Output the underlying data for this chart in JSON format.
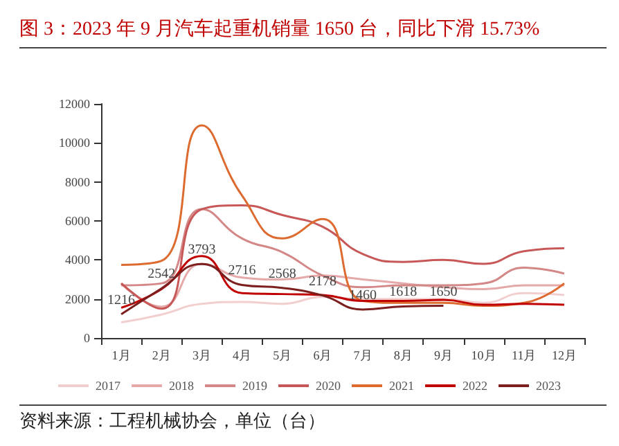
{
  "chart_data": {
    "type": "line",
    "title": "图 3：2023 年 9 月汽车起重机销量 1650 台，同比下滑 15.73%",
    "categories": [
      "1月",
      "2月",
      "3月",
      "4月",
      "5月",
      "6月",
      "7月",
      "8月",
      "9月",
      "10月",
      "11月",
      "12月"
    ],
    "series": [
      {
        "name": "2017",
        "color": "#f2cfcf",
        "values": [
          800,
          1200,
          1750,
          1850,
          1750,
          2100,
          2000,
          2000,
          2000,
          1800,
          2300,
          2200
        ]
      },
      {
        "name": "2018",
        "color": "#e6a9a9",
        "values": [
          2800,
          1600,
          3800,
          3100,
          3000,
          3200,
          3000,
          2800,
          2600,
          2500,
          2700,
          2700
        ]
      },
      {
        "name": "2019",
        "color": "#d38787",
        "values": [
          2700,
          2800,
          6600,
          5100,
          4400,
          3200,
          2600,
          2700,
          2700,
          2800,
          3600,
          3300
        ]
      },
      {
        "name": "2020",
        "color": "#c85858",
        "values": [
          2800,
          1500,
          6600,
          6800,
          6300,
          5700,
          4300,
          3900,
          4000,
          3800,
          4450,
          4600
        ]
      },
      {
        "name": "2021",
        "color": "#dd6a2e",
        "values": [
          3750,
          3950,
          10900,
          7300,
          5100,
          6100,
          1900,
          1800,
          1800,
          1650,
          1800,
          2800
        ]
      },
      {
        "name": "2022",
        "color": "#c00000",
        "values": [
          1550,
          2500,
          4200,
          2300,
          2250,
          2200,
          1900,
          1900,
          1950,
          1700,
          1750,
          1700
        ]
      },
      {
        "name": "2023",
        "color": "#7b1f1f",
        "values": [
          1216,
          2542,
          3793,
          2716,
          2568,
          2178,
          1460,
          1618,
          1650,
          null,
          null,
          null
        ],
        "value_labels": [
          "1216",
          "2542",
          "3793",
          "2716",
          "2568",
          "2178",
          "1460",
          "1618",
          "1650",
          null,
          null,
          null
        ]
      }
    ],
    "ylim": [
      0,
      12000
    ],
    "yticks": [
      0,
      2000,
      4000,
      6000,
      8000,
      10000,
      12000
    ],
    "grid": false,
    "legend": "bottom",
    "marker": "none",
    "annotations": [
      "资料来源：工程机械协会，单位（台）"
    ]
  }
}
